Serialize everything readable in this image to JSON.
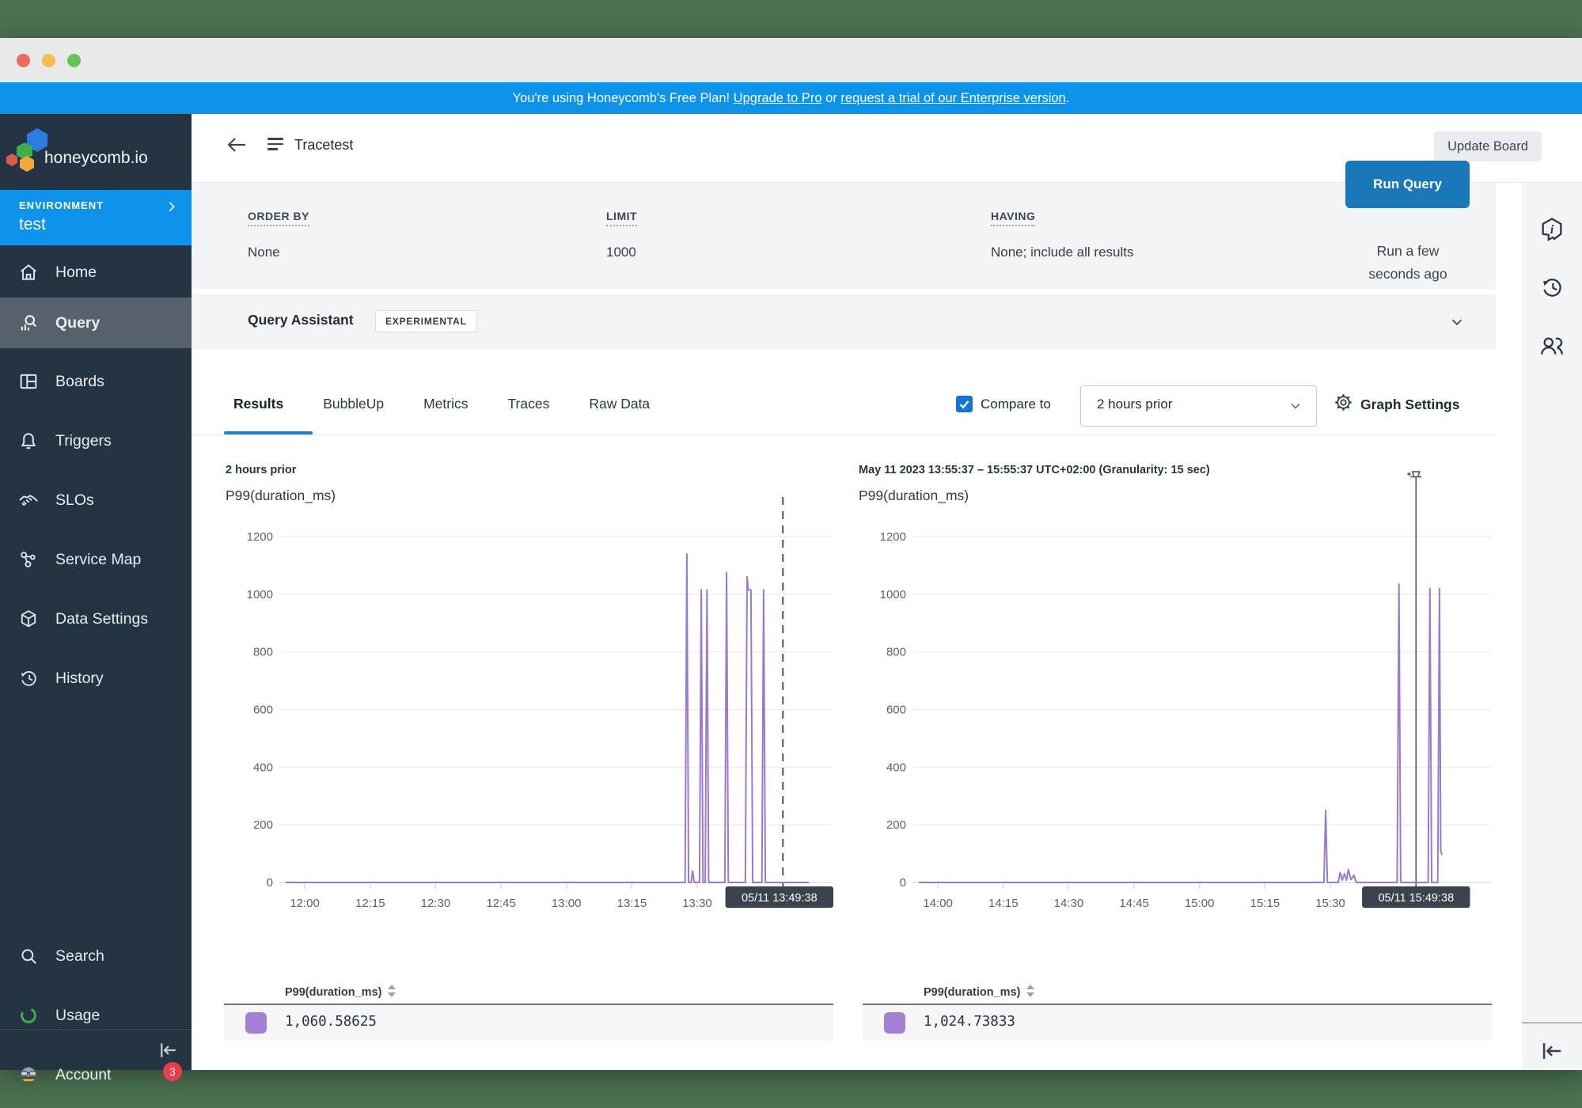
{
  "banner": {
    "prefix": "You're using Honeycomb's Free Plan! ",
    "link_pro": "Upgrade to Pro",
    "middle": " or ",
    "link_enterprise": "request a trial of our Enterprise version",
    "suffix": "."
  },
  "sidebar": {
    "logo_text": "honeycomb.io",
    "environment_label": "ENVIRONMENT",
    "environment_name": "test",
    "items": [
      {
        "label": "Home"
      },
      {
        "label": "Query"
      },
      {
        "label": "Boards"
      },
      {
        "label": "Triggers"
      },
      {
        "label": "SLOs"
      },
      {
        "label": "Service Map"
      },
      {
        "label": "Data Settings"
      },
      {
        "label": "History"
      }
    ],
    "active_item": "Query",
    "bottom_items": [
      {
        "label": "Search"
      },
      {
        "label": "Usage"
      },
      {
        "label": "Account",
        "badge": "3"
      }
    ]
  },
  "header": {
    "title": "Tracetest",
    "update_board_label": "Update Board"
  },
  "query_summary": {
    "order_by_label": "ORDER BY",
    "order_by_value": "None",
    "limit_label": "LIMIT",
    "limit_value": "1000",
    "having_label": "HAVING",
    "having_value": "None; include all results",
    "run_button_label": "Run Query",
    "run_status_line1": "Run a few",
    "run_status_line2": "seconds ago"
  },
  "query_assistant": {
    "title": "Query Assistant",
    "badge": "EXPERIMENTAL"
  },
  "tabs": {
    "items": [
      "Results",
      "BubbleUp",
      "Metrics",
      "Traces",
      "Raw Data"
    ],
    "active": "Results",
    "compare_label": "Compare to",
    "compare_checked": true,
    "compare_value": "2 hours prior",
    "graph_settings_label": "Graph Settings"
  },
  "colors": {
    "banner_blue": "#0e93ea",
    "run_button_blue": "#1878ba",
    "active_tab_blue": "#1b80d8",
    "checkbox_blue": "#1673d2",
    "series_purple": "#9b7ace",
    "swatch_purple": "#a47fd4",
    "badge_red": "#e8404a",
    "usage_green": "#3fae49",
    "timestamp_tag_dark": "#3a424d",
    "sidebar_dark": "#243442",
    "panel_gray": "#f2f4f6"
  },
  "chart_data": [
    {
      "type": "line",
      "title": "2 hours prior",
      "ylabel": "P99(duration_ms)",
      "ylim": [
        0,
        1200
      ],
      "y_ticks": [
        0,
        200,
        400,
        600,
        800,
        1000,
        1200
      ],
      "x_window_minutes": 120,
      "x_ticks": [
        {
          "t": 4.38,
          "label": "12:00"
        },
        {
          "t": 19.38,
          "label": "12:15"
        },
        {
          "t": 34.38,
          "label": "12:30"
        },
        {
          "t": 49.38,
          "label": "12:45"
        },
        {
          "t": 64.38,
          "label": "13:00"
        },
        {
          "t": 79.38,
          "label": "13:15"
        },
        {
          "t": 94.38,
          "label": "13:30"
        }
      ],
      "marker": {
        "t": 114.02,
        "label": "05/11 13:49:38",
        "style": "dashed",
        "pin": false
      },
      "series": [
        {
          "name": "P99(duration_ms)",
          "color": "#9b7ace",
          "points": [
            [
              0,
              0
            ],
            [
              91.6,
              0
            ],
            [
              92,
              1140
            ],
            [
              92.4,
              0
            ],
            [
              93,
              0
            ],
            [
              93.3,
              40
            ],
            [
              93.7,
              0
            ],
            [
              94.9,
              0
            ],
            [
              95.3,
              1015
            ],
            [
              95.7,
              0
            ],
            [
              96.2,
              0
            ],
            [
              96.6,
              1015
            ],
            [
              97,
              0
            ],
            [
              100.7,
              0
            ],
            [
              101.1,
              1075
            ],
            [
              101.5,
              0
            ],
            [
              105.4,
              0
            ],
            [
              105.8,
              1060
            ],
            [
              106.1,
              1015
            ],
            [
              106.7,
              1015
            ],
            [
              107.1,
              0
            ],
            [
              109.2,
              0
            ],
            [
              109.6,
              1015
            ],
            [
              110,
              0
            ],
            [
              120,
              0
            ]
          ]
        }
      ],
      "summary_value": 1060.58625
    },
    {
      "type": "line",
      "title": "May 11 2023 13:55:37 – 15:55:37 UTC+02:00 (Granularity: 15 sec)",
      "ylabel": "P99(duration_ms)",
      "ylim": [
        0,
        1200
      ],
      "y_ticks": [
        0,
        200,
        400,
        600,
        800,
        1000,
        1200
      ],
      "x_window_minutes": 120,
      "x_ticks": [
        {
          "t": 4.38,
          "label": "14:00"
        },
        {
          "t": 19.38,
          "label": "14:15"
        },
        {
          "t": 34.38,
          "label": "14:30"
        },
        {
          "t": 49.38,
          "label": "14:45"
        },
        {
          "t": 64.38,
          "label": "15:00"
        },
        {
          "t": 79.38,
          "label": "15:15"
        },
        {
          "t": 94.38,
          "label": "15:30"
        }
      ],
      "marker": {
        "t": 114.02,
        "label": "05/11 15:49:38",
        "style": "solid",
        "pin": true
      },
      "series": [
        {
          "name": "P99(duration_ms)",
          "color": "#9b7ace",
          "points": [
            [
              0,
              0
            ],
            [
              92.9,
              0
            ],
            [
              93.3,
              250
            ],
            [
              93.7,
              0
            ],
            [
              96.2,
              0
            ],
            [
              96.6,
              35
            ],
            [
              97.1,
              8
            ],
            [
              97.6,
              30
            ],
            [
              98.1,
              8
            ],
            [
              98.5,
              45
            ],
            [
              99.1,
              10
            ],
            [
              99.8,
              25
            ],
            [
              100.3,
              0
            ],
            [
              109.7,
              0
            ],
            [
              110.1,
              1035
            ],
            [
              110.5,
              0
            ],
            [
              116.8,
              0
            ],
            [
              117.2,
              1020
            ],
            [
              117.6,
              0
            ],
            [
              119,
              0
            ],
            [
              119.4,
              1020
            ],
            [
              119.7,
              110
            ],
            [
              120,
              95
            ]
          ]
        }
      ],
      "summary_value": 1024.73833
    }
  ],
  "tables": [
    {
      "header": "P99(duration_ms)",
      "value": "1,060.58625"
    },
    {
      "header": "P99(duration_ms)",
      "value": "1,024.73833"
    }
  ]
}
